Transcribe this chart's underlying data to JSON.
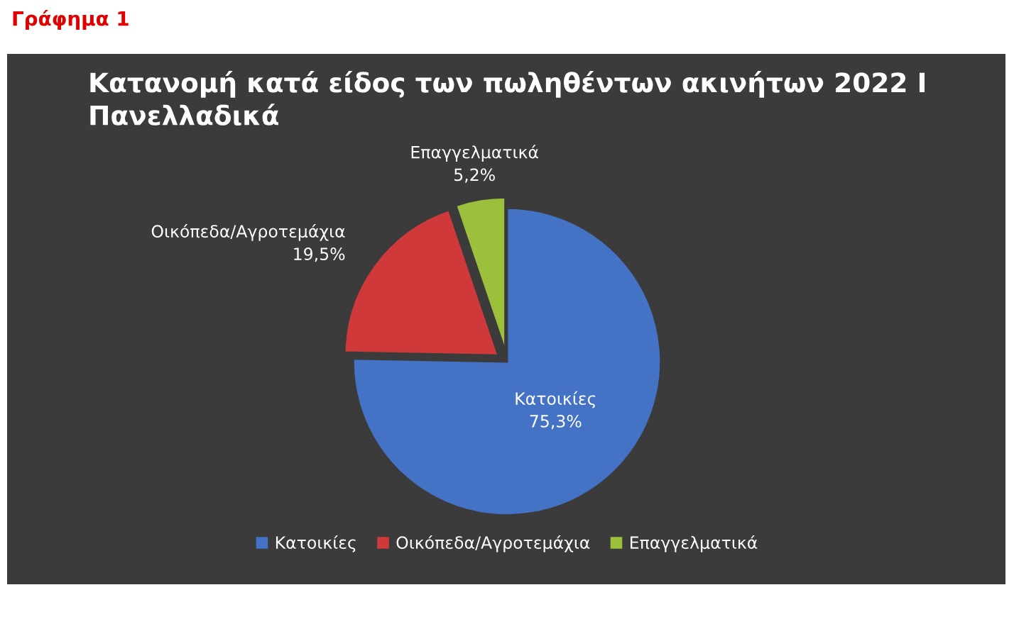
{
  "chart_data": {
    "type": "pie",
    "title": "Κατανομή κατά είδος των πωληθέντων ακινήτων 2022 Ι Πανελλαδικά",
    "categories": [
      "Κατοικίες",
      "Οικόπεδα/Αγροτεμάχια",
      "Επαγγελματικά"
    ],
    "values": [
      75.3,
      19.5,
      5.2
    ],
    "colors": [
      "#4472c4",
      "#d0393a",
      "#9dc03c"
    ],
    "value_labels": [
      "75,3%",
      "19,5%",
      "5,2%"
    ],
    "legend": "bottom",
    "annotations": [
      "Γράφημα 1"
    ]
  }
}
